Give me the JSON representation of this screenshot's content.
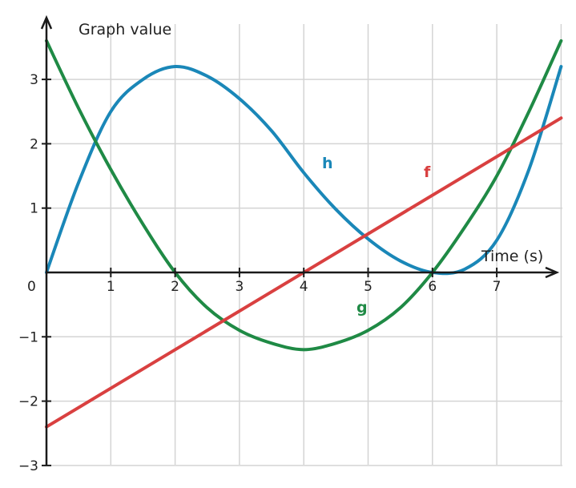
{
  "chart_data": {
    "type": "line",
    "title": "",
    "xlabel": "Time (s)",
    "ylabel": "Graph value",
    "xlim": [
      0,
      8
    ],
    "ylim": [
      -3,
      3.6
    ],
    "x_ticks": [
      "1",
      "2",
      "3",
      "4",
      "5",
      "6",
      "7"
    ],
    "y_ticks": [
      "3",
      "2",
      "1",
      "−1",
      "−2",
      "−3"
    ],
    "origin_label": "0",
    "grid": true,
    "series": [
      {
        "name": "h",
        "color": "#1a87b8",
        "x": [
          0,
          0.5,
          1,
          1.5,
          2,
          2.5,
          3,
          3.5,
          4,
          4.5,
          5,
          5.5,
          6,
          6.5,
          7,
          7.5,
          8
        ],
        "y": [
          0,
          1.4,
          2.5,
          3.0,
          3.2,
          3.05,
          2.7,
          2.2,
          1.55,
          0.98,
          0.52,
          0.18,
          0.0,
          0.05,
          0.5,
          1.6,
          3.2
        ]
      },
      {
        "name": "g",
        "color": "#1f8a45",
        "x": [
          0,
          0.5,
          1,
          1.5,
          2,
          2.5,
          3,
          3.5,
          4,
          4.5,
          5,
          5.5,
          6,
          6.5,
          7,
          7.5,
          8
        ],
        "y": [
          3.6,
          2.55,
          1.6,
          0.75,
          0.0,
          -0.55,
          -0.9,
          -1.1,
          -1.2,
          -1.1,
          -0.9,
          -0.55,
          0.0,
          0.7,
          1.5,
          2.5,
          3.6
        ]
      },
      {
        "name": "f",
        "color": "#d94040",
        "x": [
          0,
          8
        ],
        "y": [
          -2.4,
          2.4
        ]
      }
    ]
  }
}
